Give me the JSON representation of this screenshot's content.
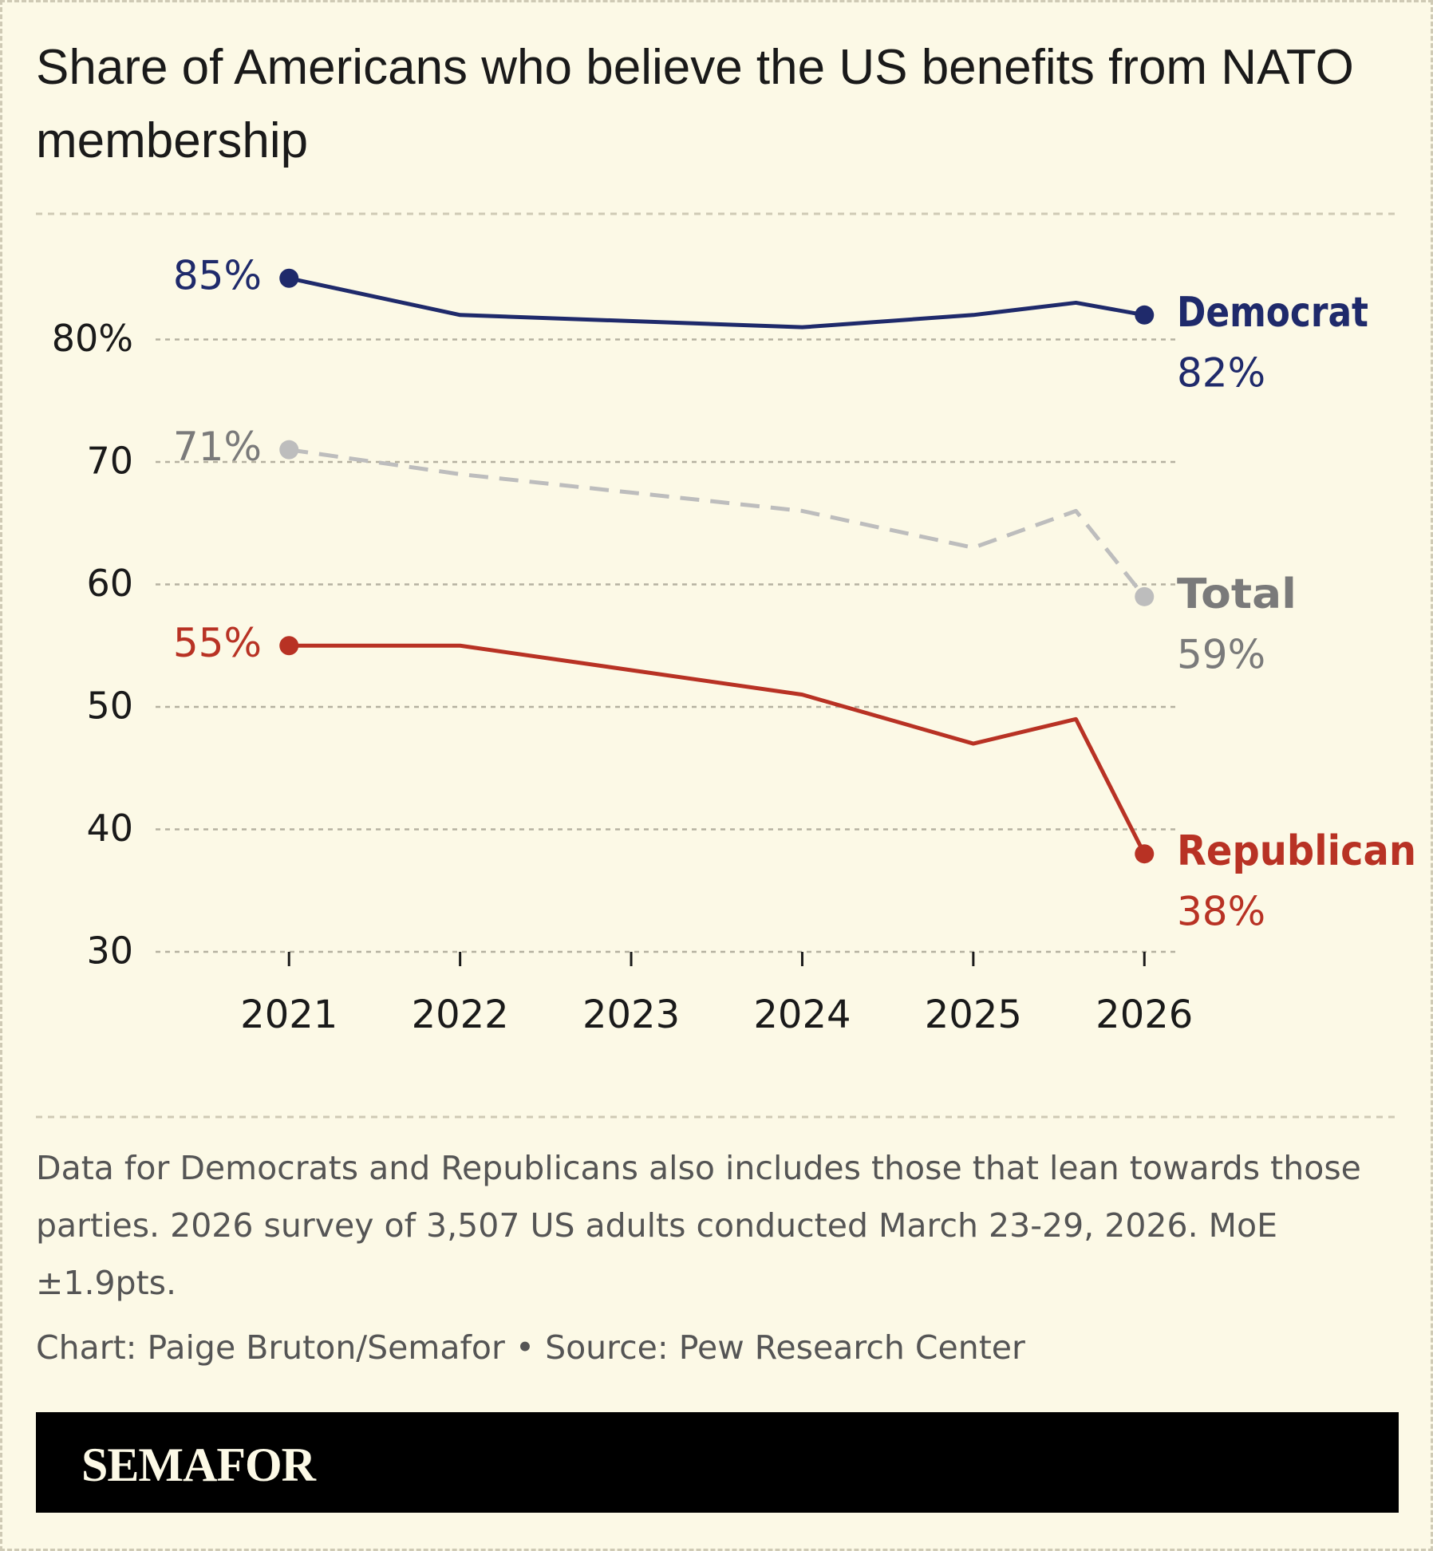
{
  "chart_data": {
    "type": "line",
    "title": "Share of Americans who believe the US benefits from NATO membership",
    "x": [
      2021,
      2022,
      2024,
      2025,
      2025.6,
      2026
    ],
    "xlim": [
      2020.22,
      2026.19
    ],
    "xticks": [
      2021,
      2022,
      2023,
      2024,
      2025,
      2026
    ],
    "ylim": [
      30,
      90
    ],
    "yticks": [
      30,
      40,
      50,
      60,
      70,
      {
        "value": 80,
        "label": "80%"
      }
    ],
    "grid": true,
    "series": [
      {
        "name": "Democrat",
        "color": "#1f2a6b",
        "label_color": "#1f2a6b",
        "dash": false,
        "values": [
          85,
          82,
          81,
          82,
          83,
          82
        ],
        "value_labels": [
          "85%",
          null,
          null,
          null,
          null,
          "82%"
        ]
      },
      {
        "name": "Total",
        "color": "#bdbdbd",
        "label_color": "#7a7a7a",
        "dash": true,
        "values": [
          71,
          69,
          66,
          63,
          66,
          59
        ],
        "value_labels": [
          "71%",
          null,
          null,
          null,
          null,
          "59%"
        ]
      },
      {
        "name": "Republican",
        "color": "#b83224",
        "label_color": "#b83224",
        "dash": false,
        "values": [
          55,
          55,
          51,
          47,
          49,
          38
        ],
        "value_labels": [
          "55%",
          null,
          null,
          null,
          null,
          "38%"
        ]
      }
    ],
    "note": "Data for Democrats and Republicans also includes those that lean towards those parties. 2026 survey of 3,507 US adults conducted March 23-29, 2026. MoE ±1.9pts.",
    "credit": "Chart: Paige Bruton/Semafor • Source: Pew Research Center",
    "brand": "SEMAFOR"
  }
}
